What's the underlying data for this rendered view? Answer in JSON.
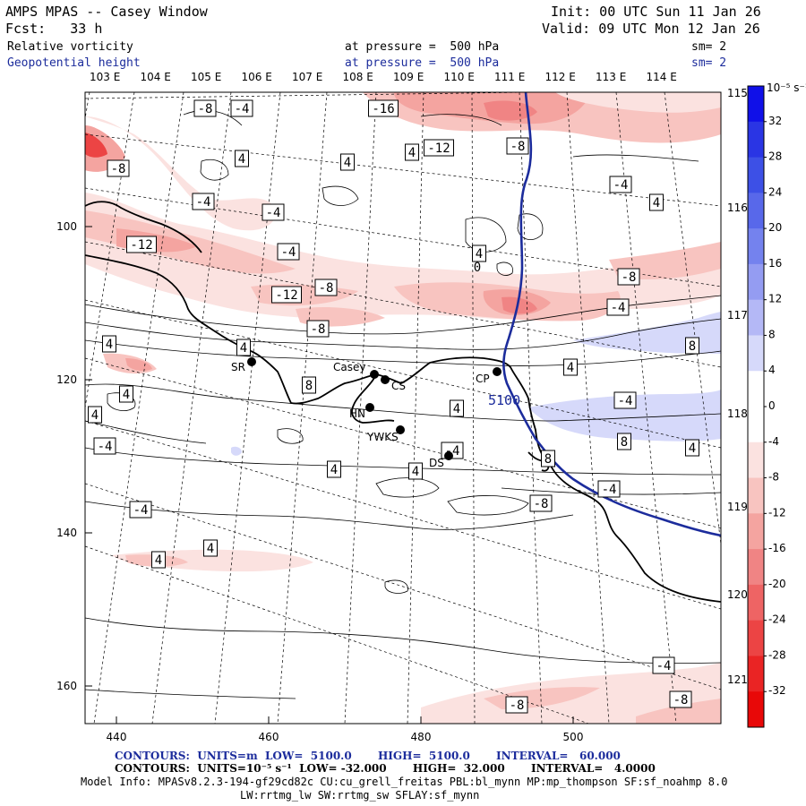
{
  "header": {
    "title": "AMPS MPAS -- Casey Window",
    "forecast": "Fcst:   33 h",
    "init": "Init: 00 UTC Sun 11 Jan 26",
    "valid": "Valid: 09 UTC Mon 12 Jan 26",
    "field1_name": "Relative vorticity",
    "field1_level": "at pressure =  500 hPa",
    "field1_sm": "sm= 2",
    "field2_name": "Geopotential height",
    "field2_level": "at pressure =  500 hPa",
    "field2_sm": "sm= 2"
  },
  "colorbar": {
    "unit": "10⁻⁵ s⁻¹",
    "levels": [
      "32",
      "28",
      "24",
      "20",
      "16",
      "12",
      "8",
      "4",
      "0",
      "-4",
      "-8",
      "-12",
      "-16",
      "-20",
      "-24",
      "-28",
      "-32"
    ],
    "colors": [
      "#1010e8",
      "#2a35e4",
      "#3d50e6",
      "#5868ea",
      "#7482ee",
      "#949cf2",
      "#b4b8f6",
      "#d6d9fa",
      "#ffffff",
      "#ffffff",
      "#fbe2e0",
      "#f8c4c0",
      "#f4a4a0",
      "#f08484",
      "#ee6464",
      "#ec4444",
      "#ea2424",
      "#e80808"
    ]
  },
  "axes": {
    "x_ticks": [
      "440",
      "460",
      "480",
      "500"
    ],
    "y_ticks": [
      "100",
      "120",
      "140",
      "160"
    ],
    "lon_top": [
      "103 E",
      "104 E",
      "105 E",
      "106 E",
      "107 E",
      "108 E",
      "109 E",
      "110 E",
      "111 E",
      "112 E",
      "113 E",
      "114 E"
    ],
    "lon_right": [
      "115 E",
      "116 E",
      "117 E",
      "118 E",
      "119 E",
      "120 E",
      "121 E"
    ]
  },
  "stations": [
    {
      "name": "SR"
    },
    {
      "name": "Casey"
    },
    {
      "name": "CS"
    },
    {
      "name": "HN"
    },
    {
      "name": "YWKS"
    },
    {
      "name": "DS"
    },
    {
      "name": "CP"
    }
  ],
  "height_label": "5100",
  "contour_labels": [
    "-8",
    "-4",
    "-16",
    "-12",
    "-8",
    "-4",
    "4",
    "4",
    "4",
    "-4",
    "-4",
    "4",
    "-12",
    "-4",
    "4",
    "-8",
    "-12",
    "-8",
    "-8",
    "-4",
    "-4",
    "-8",
    "4",
    "8",
    "4",
    "4",
    "8",
    "4",
    "-4",
    "4",
    "4",
    "8",
    "4",
    "4",
    "-4",
    "4",
    "8",
    "-4",
    "-8",
    "-4",
    "4",
    "4",
    "-4",
    "-8",
    "-8",
    "0"
  ],
  "footer": {
    "line1": "CONTOURS:  UNITS=m  LOW=  5100.0       HIGH=  5100.0       INTERVAL=   60.000",
    "line2": "CONTOURS:  UNITS=10⁻⁵ s⁻¹  LOW= -32.000       HIGH=  32.000       INTERVAL=   4.0000",
    "line3": "Model Info: MPASv8.2.3-194-gf29cd82c CU:cu_grell_freitas PBL:bl_mynn MP:mp_thompson SF:sf_noahmp 8.0",
    "line4": "LW:rrtmg_lw SW:rrtmg_sw SFLAY:sf_mynn"
  }
}
